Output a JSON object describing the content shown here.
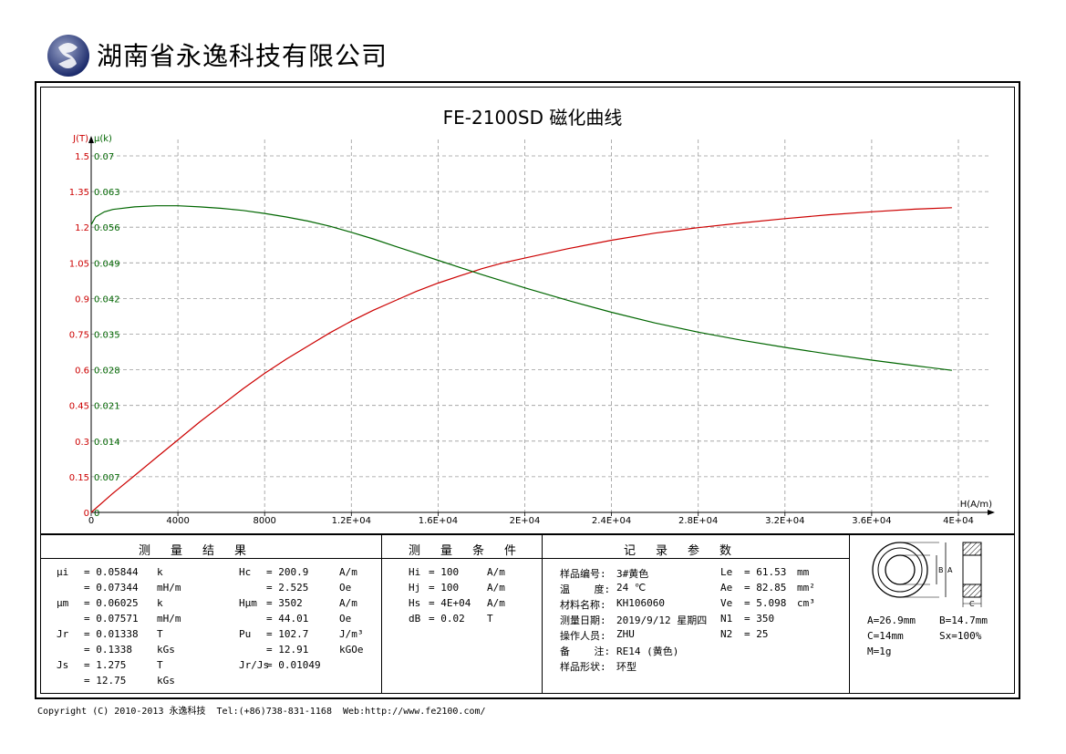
{
  "header": {
    "company": "湖南省永逸科技有限公司"
  },
  "footer": {
    "copyright": "Copyright (C) 2010-2013 永逸科技  Tel:(+86)738-831-1168  Web:http://www.fe2100.com/"
  },
  "chart_data": {
    "type": "line",
    "title": "FE-2100SD 磁化曲线",
    "ylabel": "J(T)",
    "y2label": "μ(k)",
    "xlabel": "H(A/m)",
    "xlim": [
      0,
      40000
    ],
    "ylim": [
      0,
      1.5
    ],
    "y2lim": [
      0,
      0.07
    ],
    "x_ticks": [
      "0",
      "4000",
      "8000",
      "1.2E+04",
      "1.6E+04",
      "2E+04",
      "2.4E+04",
      "2.8E+04",
      "3.2E+04",
      "3.6E+04",
      "4E+04"
    ],
    "y_ticks": [
      "0",
      "0.15",
      "0.3",
      "0.45",
      "0.6",
      "0.75",
      "0.9",
      "1.05",
      "1.2",
      "1.35",
      "1.5"
    ],
    "y2_ticks": [
      "0",
      "0.007",
      "0.014",
      "0.021",
      "0.028",
      "0.035",
      "0.042",
      "0.049",
      "0.056",
      "0.063",
      "0.07"
    ],
    "grid": true,
    "colors": {
      "J": "#cc0000",
      "mu": "#006600",
      "axis": "#000000"
    },
    "series": [
      {
        "axis": "left",
        "color": "#cc0000",
        "x": [
          0,
          1000,
          2000,
          3000,
          4000,
          5000,
          6000,
          7000,
          8000,
          9000,
          10000,
          11000,
          12000,
          13000,
          14000,
          15000,
          16000,
          17000,
          18000,
          19000,
          20000,
          22000,
          24000,
          26000,
          28000,
          30000,
          32000,
          34000,
          36000,
          38000,
          39700
        ],
        "values": [
          0,
          0.08,
          0.155,
          0.23,
          0.305,
          0.38,
          0.45,
          0.52,
          0.585,
          0.645,
          0.7,
          0.755,
          0.805,
          0.85,
          0.89,
          0.93,
          0.965,
          0.995,
          1.025,
          1.05,
          1.07,
          1.11,
          1.145,
          1.175,
          1.198,
          1.218,
          1.236,
          1.252,
          1.265,
          1.276,
          1.282
        ]
      },
      {
        "axis": "right",
        "color": "#006600",
        "x": [
          0,
          200,
          600,
          1000,
          2000,
          3000,
          4000,
          5000,
          6000,
          7000,
          8000,
          9000,
          10000,
          11000,
          12000,
          13000,
          14000,
          15000,
          16000,
          17000,
          18000,
          20000,
          22000,
          24000,
          26000,
          28000,
          30000,
          32000,
          34000,
          36000,
          38000,
          39700
        ],
        "values": [
          0.0565,
          0.058,
          0.059,
          0.0595,
          0.06,
          0.0602,
          0.0602,
          0.06,
          0.0597,
          0.0593,
          0.0587,
          0.058,
          0.0572,
          0.0562,
          0.055,
          0.0537,
          0.0523,
          0.0509,
          0.0495,
          0.0481,
          0.0467,
          0.0441,
          0.0416,
          0.0393,
          0.0372,
          0.0354,
          0.0338,
          0.0324,
          0.0311,
          0.0299,
          0.0288,
          0.0279
        ]
      }
    ]
  },
  "table": {
    "headers": {
      "results": "测量结果",
      "conditions": "测量条件",
      "params": "记录参数"
    },
    "results_col1": [
      [
        "μi",
        "= 0.05844",
        "k"
      ],
      [
        "",
        "= 0.07344",
        "mH/m"
      ],
      [
        "μm",
        "= 0.06025",
        "k"
      ],
      [
        "",
        "= 0.07571",
        "mH/m"
      ],
      [
        "Jr",
        "= 0.01338",
        "T"
      ],
      [
        "",
        "= 0.1338",
        "kGs"
      ],
      [
        "Js",
        "= 1.275",
        "T"
      ],
      [
        "",
        "= 12.75",
        "kGs"
      ]
    ],
    "results_col2": [
      [
        "Hc",
        "= 200.9",
        "A/m"
      ],
      [
        "",
        "= 2.525",
        "Oe"
      ],
      [
        "Hμm",
        "= 3502",
        "A/m"
      ],
      [
        "",
        "= 44.01",
        "Oe"
      ],
      [
        "Pu",
        "= 102.7",
        "J/m³"
      ],
      [
        "",
        "= 12.91",
        "kGOe"
      ],
      [
        "Jr/Js",
        "= 0.01049",
        ""
      ]
    ],
    "conditions": [
      [
        "Hi",
        "= 100",
        "A/m"
      ],
      [
        "Hj",
        "= 100",
        "A/m"
      ],
      [
        "Hs",
        "= 4E+04",
        "A/m"
      ],
      [
        "dB",
        "= 0.02",
        "T"
      ]
    ],
    "params_col1": [
      [
        "样品编号:",
        "3#黄色"
      ],
      [
        "温    度:",
        "24 ℃"
      ],
      [
        "材料名称:",
        "KH106060"
      ],
      [
        "测量日期:",
        "2019/9/12 星期四"
      ],
      [
        "操作人员:",
        "ZHU"
      ],
      [
        "备    注:",
        "RE14 (黄色)"
      ],
      [
        "样品形状:",
        "环型"
      ]
    ],
    "params_col2": [
      [
        "Le",
        "= 61.53",
        "mm"
      ],
      [
        "Ae",
        "= 82.85",
        "mm²"
      ],
      [
        "Ve",
        "= 5.098",
        "cm³"
      ],
      [
        "N1",
        "= 350",
        ""
      ],
      [
        "N2",
        "= 25",
        ""
      ]
    ],
    "shape": {
      "a": "A=26.9mm",
      "b": "B=14.7mm",
      "c": "C=14mm",
      "sx": "Sx=100%",
      "m": "M=1g",
      "label_a": "A",
      "label_b": "B",
      "label_c": "C"
    }
  }
}
